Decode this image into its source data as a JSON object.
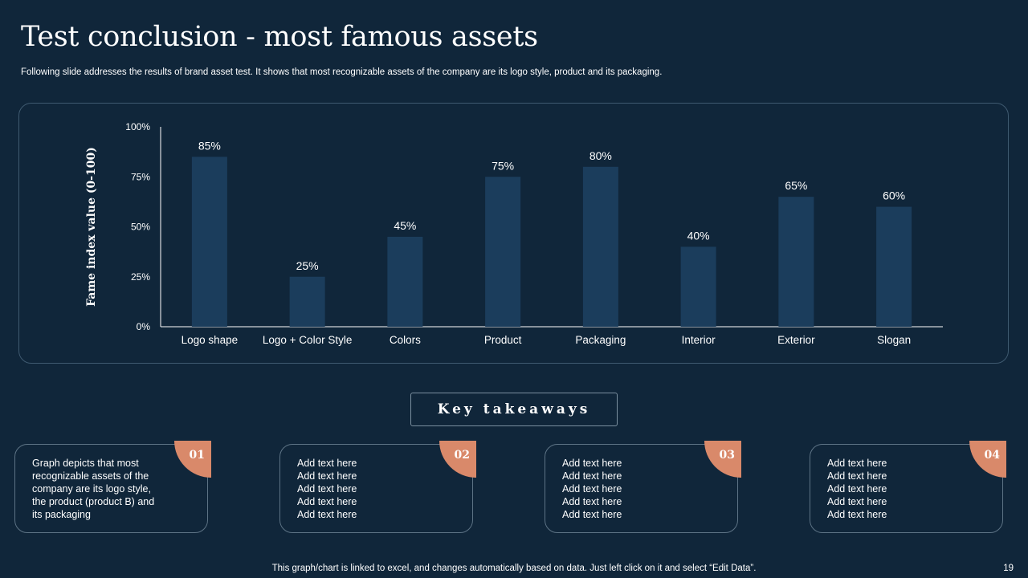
{
  "title": "Test conclusion - most famous assets",
  "subtitle": "Following slide addresses the results of brand asset test. It shows that most recognizable assets of the company are its logo style,  product and its packaging.",
  "colors": {
    "background": "#10263a",
    "bar": "#1b3d5c",
    "accent": "#d9896a"
  },
  "chart_data": {
    "type": "bar",
    "ylabel": "Fame index value (0-100)",
    "xlabel": "",
    "categories": [
      "Logo shape",
      "Logo + Color Style",
      "Colors",
      "Product",
      "Packaging",
      "Interior",
      "Exterior",
      "Slogan"
    ],
    "values": [
      85,
      25,
      45,
      75,
      80,
      40,
      65,
      60
    ],
    "value_labels": [
      "85%",
      "25%",
      "45%",
      "75%",
      "80%",
      "40%",
      "65%",
      "60%"
    ],
    "ylim": [
      0,
      100
    ],
    "yticks": [
      0,
      25,
      50,
      75,
      100
    ],
    "ytick_labels": [
      "0%",
      "25%",
      "50%",
      "75%",
      "100%"
    ],
    "grid": false,
    "legend": "none"
  },
  "key_takeaways": {
    "heading": "Key takeaways",
    "cards": [
      {
        "number": "01",
        "text": "Graph depicts that most recognizable assets of the company are its logo style, the product (product B) and its packaging"
      },
      {
        "number": "02",
        "lines": [
          "Add text here",
          "Add text here",
          "Add text here",
          "Add text here",
          "Add text here"
        ]
      },
      {
        "number": "03",
        "lines": [
          "Add text here",
          "Add text here",
          "Add text here",
          "Add text here",
          "Add text here"
        ]
      },
      {
        "number": "04",
        "lines": [
          "Add text here",
          "Add text here",
          "Add text here",
          "Add text here",
          "Add text here"
        ]
      }
    ]
  },
  "footer": "This graph/chart is linked to excel,  and changes automatically based on data. Just left click on it and select “Edit Data”.",
  "page_number": "19"
}
